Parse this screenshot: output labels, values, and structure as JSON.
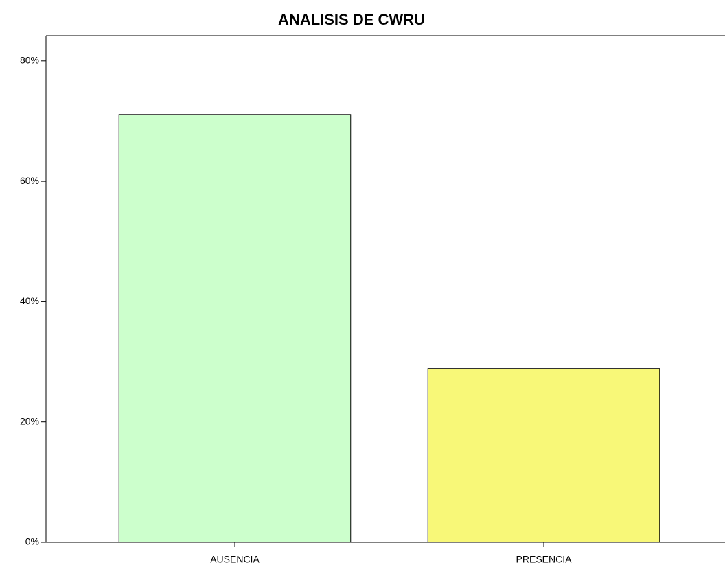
{
  "chart_data": {
    "type": "bar",
    "title": "ANALISIS DE CWRU",
    "categories": [
      "AUSENCIA",
      "PRESENCIA"
    ],
    "values": [
      71.1,
      28.9
    ],
    "colors": [
      "#ccffcc",
      "#f8f878"
    ],
    "ylim": [
      0,
      84.2
    ],
    "yticks": [
      {
        "value": 0,
        "label": "0%"
      },
      {
        "value": 20,
        "label": "20%"
      },
      {
        "value": 40,
        "label": "40%"
      },
      {
        "value": 60,
        "label": "60%"
      },
      {
        "value": 80,
        "label": "80%"
      }
    ],
    "grid": false
  }
}
